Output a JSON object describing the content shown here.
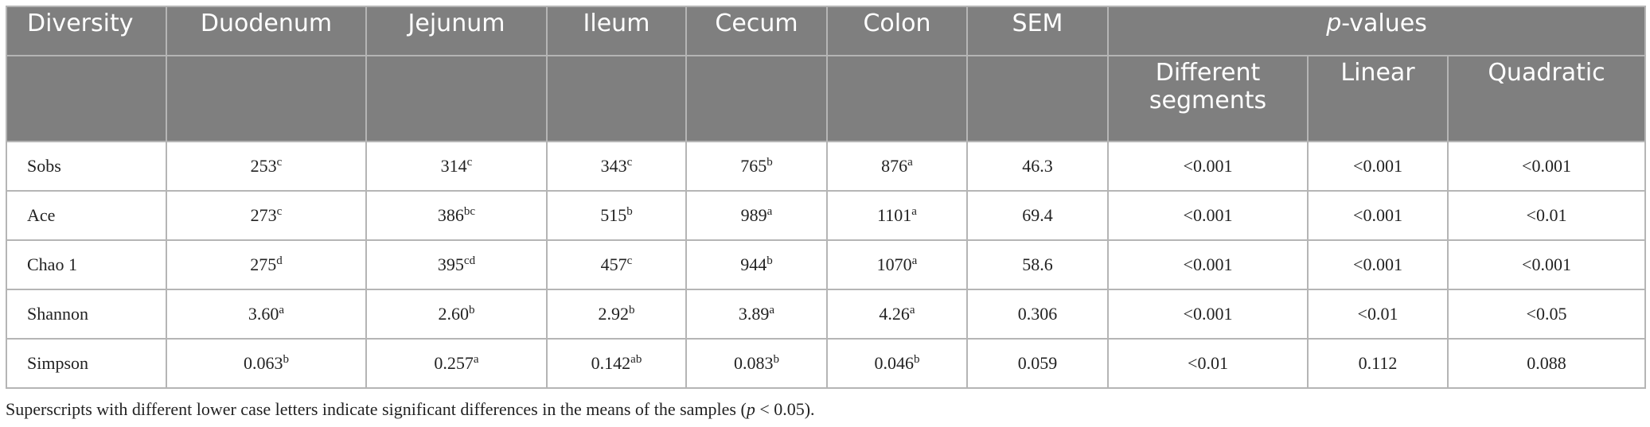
{
  "table": {
    "header": [
      "Diversity",
      "Duodenum",
      "Jejunum",
      "Ileum",
      "Cecum",
      "Colon",
      "SEM"
    ],
    "p_values": {
      "italic": "p",
      "rest": "-values"
    },
    "subheader": [
      "Different segments",
      "Linear",
      "Quadratic"
    ],
    "rows": [
      [
        "Sobs",
        {
          "text": "253",
          "sup": "c"
        },
        {
          "text": "314",
          "sup": "c"
        },
        {
          "text": "343",
          "sup": "c"
        },
        {
          "text": "765",
          "sup": "b"
        },
        {
          "text": "876",
          "sup": "a"
        },
        "46.3",
        "<0.001",
        "<0.001",
        "<0.001"
      ],
      [
        "Ace",
        {
          "text": "273",
          "sup": "c"
        },
        {
          "text": "386",
          "sup": "bc"
        },
        {
          "text": "515",
          "sup": "b"
        },
        {
          "text": "989",
          "sup": "a"
        },
        {
          "text": "1101",
          "sup": "a"
        },
        "69.4",
        "<0.001",
        "<0.001",
        "<0.01"
      ],
      [
        "Chao 1",
        {
          "text": "275",
          "sup": "d"
        },
        {
          "text": "395",
          "sup": "cd"
        },
        {
          "text": "457",
          "sup": "c"
        },
        {
          "text": "944",
          "sup": "b"
        },
        {
          "text": "1070",
          "sup": "a"
        },
        "58.6",
        "<0.001",
        "<0.001",
        "<0.001"
      ],
      [
        "Shannon",
        {
          "text": "3.60",
          "sup": "a"
        },
        {
          "text": "2.60",
          "sup": "b"
        },
        {
          "text": "2.92",
          "sup": "b"
        },
        {
          "text": "3.89",
          "sup": "a"
        },
        {
          "text": "4.26",
          "sup": "a"
        },
        "0.306",
        "<0.001",
        "<0.01",
        "<0.05"
      ],
      [
        "Simpson",
        {
          "text": "0.063",
          "sup": "b"
        },
        {
          "text": "0.257",
          "sup": "a"
        },
        {
          "text": "0.142",
          "sup": "ab"
        },
        {
          "text": "0.083",
          "sup": "b"
        },
        {
          "text": "0.046",
          "sup": "b"
        },
        "0.059",
        "<0.01",
        "0.112",
        "0.088"
      ]
    ]
  },
  "footnote": [
    "Superscripts with different lower case letters indicate significant differences in the means of the samples (",
    "p",
    " < 0.05)."
  ]
}
